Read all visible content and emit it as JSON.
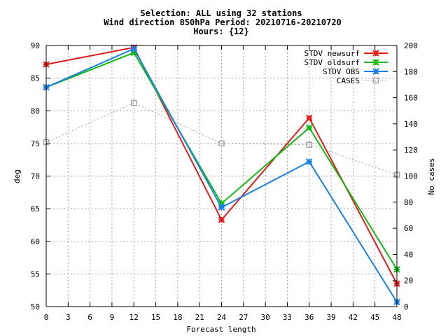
{
  "chart_data": {
    "type": "line",
    "title_lines": [
      "Selection: ALL using    32 stations",
      "Wind direction 850hPa   Period: 20210716-20210720",
      "Hours: {12}"
    ],
    "xlabel": "Forecast length",
    "ylabel": "deg",
    "y2label": "No cases",
    "xlim": [
      0,
      48
    ],
    "ylim": [
      50,
      90
    ],
    "y2lim": [
      0,
      200
    ],
    "xticks": [
      0,
      3,
      6,
      9,
      12,
      15,
      18,
      21,
      24,
      27,
      30,
      33,
      36,
      39,
      42,
      45,
      48
    ],
    "yticks": [
      50,
      55,
      60,
      65,
      70,
      75,
      80,
      85,
      90
    ],
    "y2ticks": [
      0,
      20,
      40,
      60,
      80,
      100,
      120,
      140,
      160,
      180,
      200
    ],
    "grid": true,
    "legend_position": "top-right",
    "x": [
      0,
      12,
      24,
      36,
      48
    ],
    "series": [
      {
        "name": "STDV newsurf",
        "axis": "left",
        "color": "#e41a1c",
        "marker": "x-star",
        "style": "solid",
        "values": [
          87.1,
          89.7,
          63.3,
          78.9,
          53.5
        ]
      },
      {
        "name": "STDV oldsurf",
        "axis": "left",
        "color": "#11bb11",
        "marker": "x-star",
        "style": "solid",
        "values": [
          83.6,
          88.9,
          65.8,
          77.4,
          55.7
        ]
      },
      {
        "name": "STDV OBS",
        "axis": "left",
        "color": "#1a80e8",
        "marker": "x-star",
        "style": "solid",
        "values": [
          83.6,
          89.5,
          65.2,
          72.2,
          50.7
        ]
      },
      {
        "name": "CASES",
        "axis": "right",
        "color": "#a0a0a0",
        "marker": "square",
        "style": "dotted",
        "values": [
          126,
          156,
          125,
          124,
          101
        ]
      }
    ]
  }
}
